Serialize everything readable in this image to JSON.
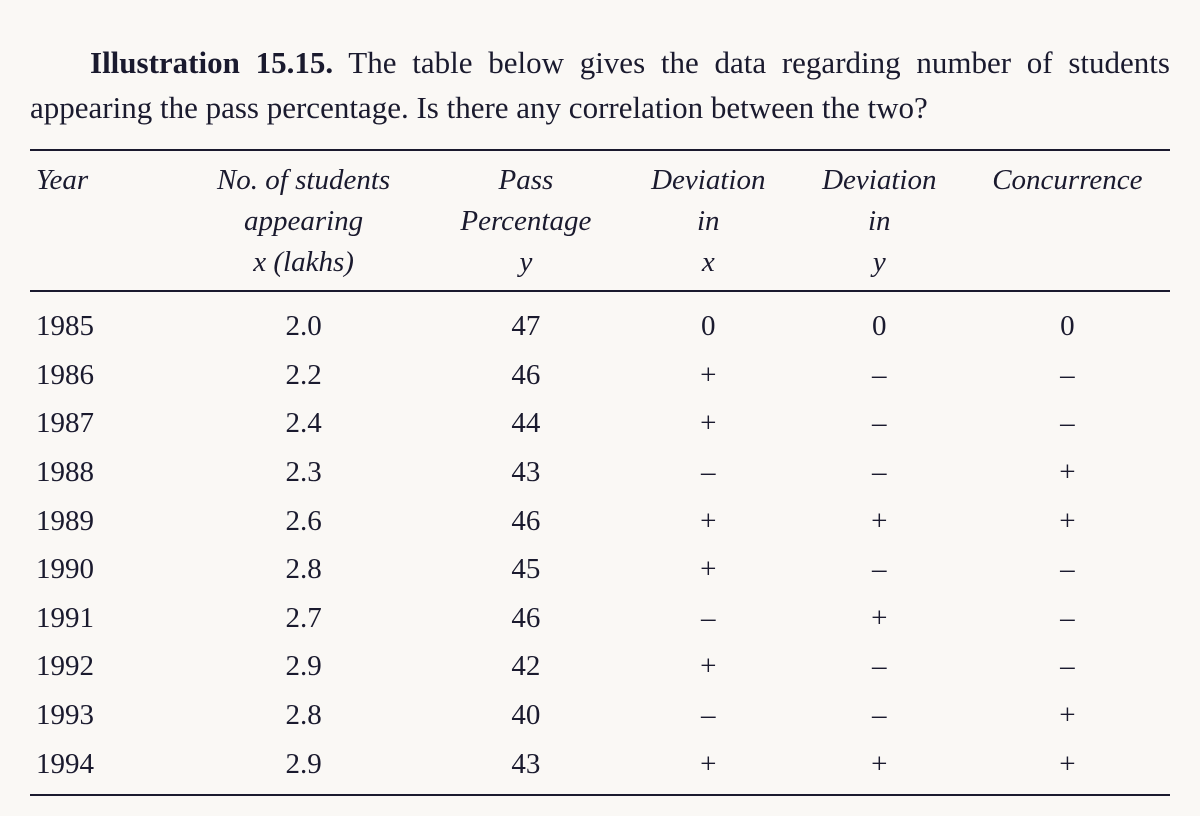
{
  "intro": {
    "label": "Illustration 15.15.",
    "text": " The table below gives the data regarding number of students appearing the pass percentage. Is there any correlation between the two?"
  },
  "table": {
    "headers": {
      "year": "Year",
      "x_l1": "No. of students",
      "x_l2": "appearing",
      "x_l3": "x (lakhs)",
      "y_l1": "Pass",
      "y_l2": "Percentage",
      "y_l3": "y",
      "dx_l1": "Deviation",
      "dx_l2": "in",
      "dx_l3": "x",
      "dy_l1": "Deviation",
      "dy_l2": "in",
      "dy_l3": "y",
      "c_l1": "Concurrence"
    },
    "rows": [
      {
        "year": "1985",
        "x": "2.0",
        "y": "47",
        "dx": "0",
        "dy": "0",
        "c": "0"
      },
      {
        "year": "1986",
        "x": "2.2",
        "y": "46",
        "dx": "+",
        "dy": "–",
        "c": "–"
      },
      {
        "year": "1987",
        "x": "2.4",
        "y": "44",
        "dx": "+",
        "dy": "–",
        "c": "–"
      },
      {
        "year": "1988",
        "x": "2.3",
        "y": "43",
        "dx": "–",
        "dy": "–",
        "c": "+"
      },
      {
        "year": "1989",
        "x": "2.6",
        "y": "46",
        "dx": "+",
        "dy": "+",
        "c": "+"
      },
      {
        "year": "1990",
        "x": "2.8",
        "y": "45",
        "dx": "+",
        "dy": "–",
        "c": "–"
      },
      {
        "year": "1991",
        "x": "2.7",
        "y": "46",
        "dx": "–",
        "dy": "+",
        "c": "–"
      },
      {
        "year": "1992",
        "x": "2.9",
        "y": "42",
        "dx": "+",
        "dy": "–",
        "c": "–"
      },
      {
        "year": "1993",
        "x": "2.8",
        "y": "40",
        "dx": "–",
        "dy": "–",
        "c": "+"
      },
      {
        "year": "1994",
        "x": "2.9",
        "y": "43",
        "dx": "+",
        "dy": "+",
        "c": "+"
      }
    ]
  }
}
